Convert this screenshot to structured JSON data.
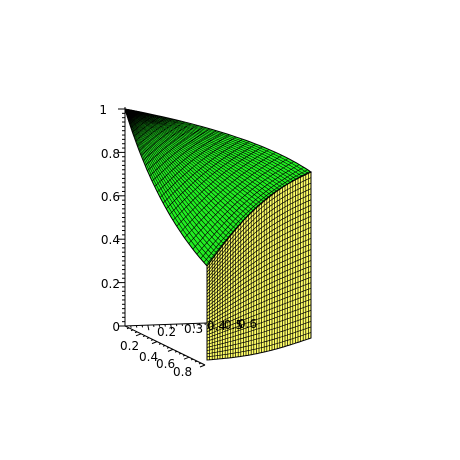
{
  "chart_data": {
    "type": "surface3d",
    "title": "",
    "axes": {
      "x": {
        "ticks": [
          "0.2",
          "0.4",
          "0.6",
          "0.8"
        ]
      },
      "y": {
        "ticks": [
          "0.2",
          "0.3",
          "0.4",
          "0.5",
          "0.6"
        ]
      },
      "z": {
        "ticks": [
          "0",
          "0.2",
          "0.4",
          "0.6",
          "0.8",
          "1"
        ],
        "range": [
          0,
          1
        ]
      }
    },
    "surfaces": [
      {
        "name": "",
        "description": "curved top surface, z falling from 1 at the origin corner to about 0.29 at the far corner",
        "color": "#22ee22",
        "mesh_color": "#000000"
      },
      {
        "name": "",
        "description": "vertical wall below the top surface",
        "color": "#ffff66",
        "mesh_color": "#000000"
      }
    ],
    "grid": false,
    "legend": "none"
  }
}
